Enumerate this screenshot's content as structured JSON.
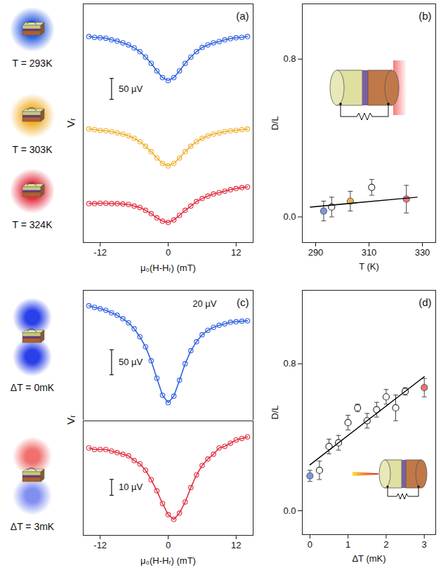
{
  "chart_data": [
    {
      "type": "line",
      "title": "(a)",
      "x_label": "μ₀(H-Hᵣ) (mT)",
      "y_label": "Vᵣ",
      "x": [
        -14,
        -13,
        -12,
        -11,
        -10,
        -9,
        -8,
        -7,
        -6,
        -5,
        -4,
        -3,
        -2,
        -1,
        0,
        1,
        2,
        3,
        4,
        5,
        6,
        7,
        8,
        9,
        10,
        11,
        12,
        13,
        14
      ],
      "xlim": [
        -15,
        15
      ],
      "xticks": [
        -12,
        0,
        12
      ],
      "ylim": [
        0,
        570
      ],
      "tick_labels": "x",
      "marker": "open circle",
      "line_style": "solid",
      "scale_bars": [
        {
          "value": 50,
          "label": "50 µV"
        }
      ],
      "series": [
        {
          "name": "T = 293K",
          "color": "#3060e0",
          "values": [
            492,
            490,
            489,
            488,
            484,
            481,
            477,
            472,
            465,
            456,
            443,
            428,
            410,
            394,
            387,
            394,
            410,
            428,
            443,
            456,
            466,
            472,
            477,
            480,
            484,
            487,
            489,
            490,
            492
          ]
        },
        {
          "name": "T = 303K",
          "color": "#f0b030",
          "values": [
            271,
            270,
            268,
            267,
            265,
            262,
            259,
            255,
            249,
            241,
            230,
            217,
            202,
            189,
            183,
            189,
            202,
            217,
            230,
            241,
            249,
            255,
            259,
            262,
            265,
            267,
            268,
            270,
            271
          ]
        },
        {
          "name": "T = 324K",
          "color": "#e03040",
          "values": [
            93,
            93,
            94,
            94,
            93,
            93,
            92,
            91,
            87,
            84,
            77,
            69,
            59,
            51,
            48,
            54,
            65,
            77,
            87,
            98,
            105,
            111,
            116,
            119,
            123,
            126,
            129,
            131,
            133
          ]
        }
      ]
    },
    {
      "type": "scatter",
      "title": "(b)",
      "x_label": "T (K)",
      "y_label": "D/L",
      "xlim": [
        285,
        335
      ],
      "xticks": [
        290,
        310,
        330
      ],
      "ylim": [
        -0.13,
        1.08
      ],
      "yticks": [
        {
          "value": 0,
          "label": "0.0"
        },
        {
          "value": 0.8,
          "label": "0.8"
        }
      ],
      "series": [
        {
          "marker": "filled circle",
          "colors": [
            "#7a98e8",
            "#f0b040",
            "#f07070"
          ],
          "x": [
            293,
            303,
            324
          ],
          "values": [
            0.03,
            0.08,
            0.09
          ],
          "errors": [
            0.05,
            0.05,
            0.07
          ]
        },
        {
          "marker": "open circle",
          "color": "#333333",
          "x": [
            296,
            311
          ],
          "values": [
            0.05,
            0.15
          ],
          "errors": [
            0.05,
            0.04
          ]
        },
        {
          "type": "line",
          "color": "#000000",
          "x": [
            288,
            328
          ],
          "values": [
            0.05,
            0.1
          ]
        }
      ]
    },
    {
      "type": "line",
      "title": "(c)",
      "annotations": [
        "20 µV"
      ],
      "x": [
        -14,
        -13,
        -12,
        -11,
        -10,
        -9,
        -8,
        -7,
        -6,
        -5,
        -4,
        -3,
        -2,
        -1,
        0,
        1,
        2,
        3,
        4,
        5,
        6,
        7,
        8,
        9,
        10,
        11,
        12,
        13,
        14
      ],
      "xlim": [
        -15,
        15
      ],
      "ylim": [
        0,
        260
      ],
      "tick_labels": false,
      "marker": "open circle",
      "line_style": "solid",
      "scale_bars": [
        {
          "value": 50,
          "label": "50 µV"
        }
      ],
      "series": [
        {
          "name": "ΔT = 0mK",
          "color": "#3060e0",
          "values": [
            229,
            226,
            223,
            220,
            215,
            210,
            203,
            195,
            183,
            167,
            147,
            119,
            84,
            50,
            35,
            48,
            80,
            113,
            139,
            157,
            171,
            180,
            186,
            190,
            193,
            196,
            197,
            198,
            199
          ]
        }
      ]
    },
    {
      "type": "line",
      "x_label": "μ₀(H-Hᵣ) (mT)",
      "y_label": "Vᵣ",
      "x": [
        -14,
        -13,
        -12,
        -11,
        -10,
        -9,
        -8,
        -7,
        -6,
        -5,
        -4,
        -3,
        -2,
        -1,
        0,
        1,
        2,
        3,
        4,
        5,
        6,
        7,
        8,
        9,
        10,
        11,
        12,
        13,
        14
      ],
      "xlim": [
        -15,
        15
      ],
      "xticks": [
        -12,
        0,
        12
      ],
      "ylim": [
        0,
        72
      ],
      "tick_labels": "x",
      "marker": "open circle",
      "line_style": "solid",
      "scale_bars": [
        {
          "value": 10,
          "label": "10 µV"
        }
      ],
      "series": [
        {
          "name": "ΔT = 3mK",
          "color": "#e03040",
          "values": [
            55,
            54,
            54,
            54,
            53,
            52,
            51,
            50,
            47,
            45,
            41,
            35,
            28,
            20,
            13,
            10,
            14,
            21,
            30,
            38,
            44,
            48,
            51,
            55,
            56,
            58,
            60,
            61,
            62
          ]
        }
      ]
    },
    {
      "type": "scatter",
      "title": "(d)",
      "x_label": "ΔT (mK)",
      "y_label": "D/L",
      "xlim": [
        -0.2,
        3.3
      ],
      "xticks": [
        0,
        1,
        2,
        3
      ],
      "ylim": [
        -0.13,
        1.2
      ],
      "yticks": [
        {
          "value": 0,
          "label": "0.0"
        },
        {
          "value": 0.8,
          "label": "0.8"
        }
      ],
      "series": [
        {
          "marker": "filled circle",
          "colors": [
            "#7a98e8",
            "#f07070"
          ],
          "x": [
            0,
            3
          ],
          "values": [
            0.19,
            0.67
          ],
          "errors": [
            0.03,
            0.05
          ]
        },
        {
          "marker": "open circle",
          "color": "#333333",
          "x": [
            0.25,
            0.5,
            0.75,
            1.0,
            1.25,
            1.5,
            1.75,
            2.0,
            2.25,
            2.5
          ],
          "values": [
            0.22,
            0.35,
            0.37,
            0.48,
            0.56,
            0.49,
            0.55,
            0.62,
            0.56,
            0.65
          ],
          "errors": [
            0.05,
            0.04,
            0.04,
            0.04,
            0.02,
            0.04,
            0.04,
            0.04,
            0.07,
            0.02
          ]
        },
        {
          "type": "line",
          "color": "#000000",
          "x": [
            0,
            3
          ],
          "values": [
            0.25,
            0.73
          ]
        }
      ]
    }
  ]
}
